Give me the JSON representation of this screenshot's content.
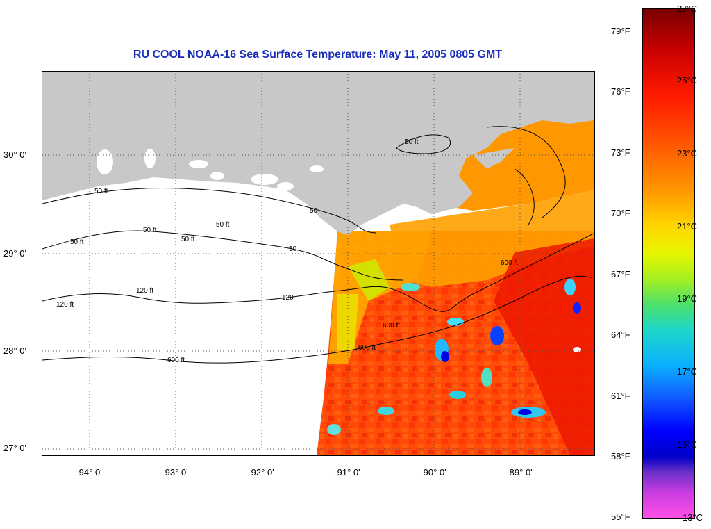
{
  "title": "RU COOL  NOAA-16  Sea Surface Temperature:  May 11, 2005 0805 GMT",
  "map": {
    "latitude_labels": [
      "30° 0'",
      "29° 0'",
      "28° 0'",
      "27° 0'"
    ],
    "longitude_labels": [
      "-94° 0'",
      "-93° 0'",
      "-92° 0'",
      "-91° 0'",
      "-90° 0'",
      "-89° 0'"
    ],
    "contour_labels": [
      "50 ft",
      "50 ft",
      "50 ft",
      "50 ft",
      "50 ft",
      "50 ft",
      "50",
      "50",
      "120 ft",
      "120 ft",
      "120",
      "600 ft",
      "600 ft",
      "600 ft",
      "600 ft"
    ],
    "colors": {
      "land": "#c8c8c8",
      "no_data": "#ffffff",
      "grid": "#555555"
    }
  },
  "colorbar": {
    "fahrenheit_labels": [
      "79°F",
      "76°F",
      "73°F",
      "70°F",
      "67°F",
      "64°F",
      "61°F",
      "58°F",
      "55°F"
    ],
    "celsius_labels": [
      "27°C",
      "25°C",
      "23°C",
      "21°C",
      "19°C",
      "17°C",
      "15°C",
      "13°C"
    ]
  }
}
